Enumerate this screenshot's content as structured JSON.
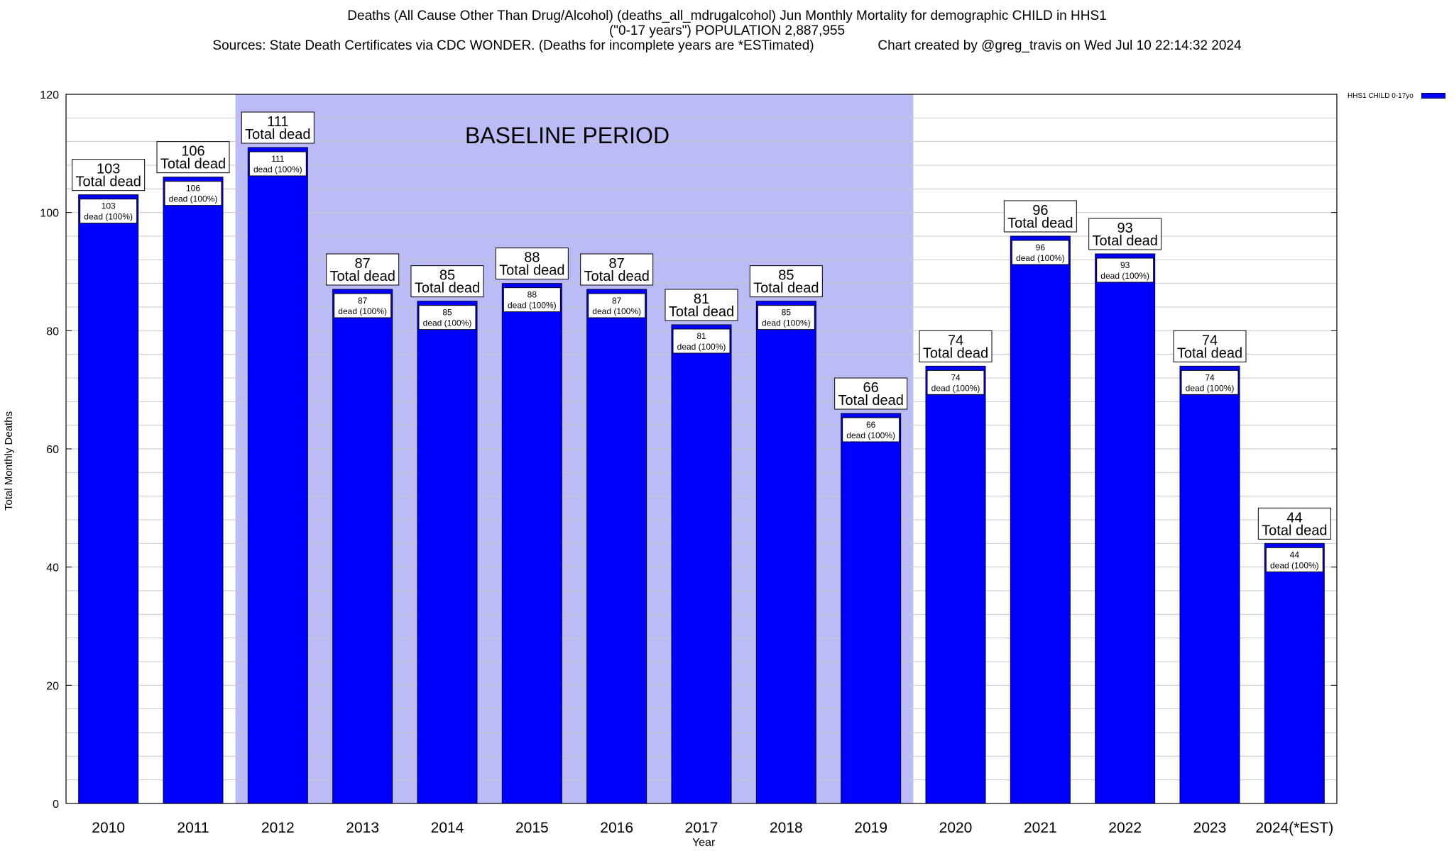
{
  "title_line1": "Deaths (All Cause Other Than Drug/Alcohol) (deaths_all_mdrugalcohol) Jun Monthly Mortality for demographic CHILD in HHS1",
  "title_line2": "(\"0-17 years\") POPULATION 2,887,955",
  "title_line3": "Sources: State Death Certificates via CDC WONDER. (Deaths for incomplete years are *ESTimated)                 Chart created by @greg_travis on Wed Jul 10 22:14:32 2024",
  "colors": {
    "bar": "#0000ff",
    "baseline_band": "#bbbbf5",
    "grid": "#c8c8c8"
  },
  "chart_data": {
    "type": "bar",
    "categories": [
      "2010",
      "2011",
      "2012",
      "2013",
      "2014",
      "2015",
      "2016",
      "2017",
      "2018",
      "2019",
      "2020",
      "2021",
      "2022",
      "2023",
      "2024(*EST)"
    ],
    "series": [
      {
        "name": "HHS1 CHILD 0-17yo",
        "values": [
          103,
          106,
          111,
          87,
          85,
          88,
          87,
          81,
          85,
          66,
          74,
          96,
          93,
          74,
          44
        ]
      }
    ],
    "top_label_suffix": "Total dead",
    "inner_label_suffix": "dead (100%)",
    "xlabel": "Year",
    "ylabel": "Total Monthly Deaths",
    "ylim": [
      0,
      120
    ],
    "yticks": [
      0,
      20,
      40,
      60,
      80,
      100,
      120
    ],
    "grid": true,
    "baseline": {
      "label": "BASELINE PERIOD",
      "from": "2012",
      "to": "2019"
    },
    "legend_position": "top-right"
  }
}
